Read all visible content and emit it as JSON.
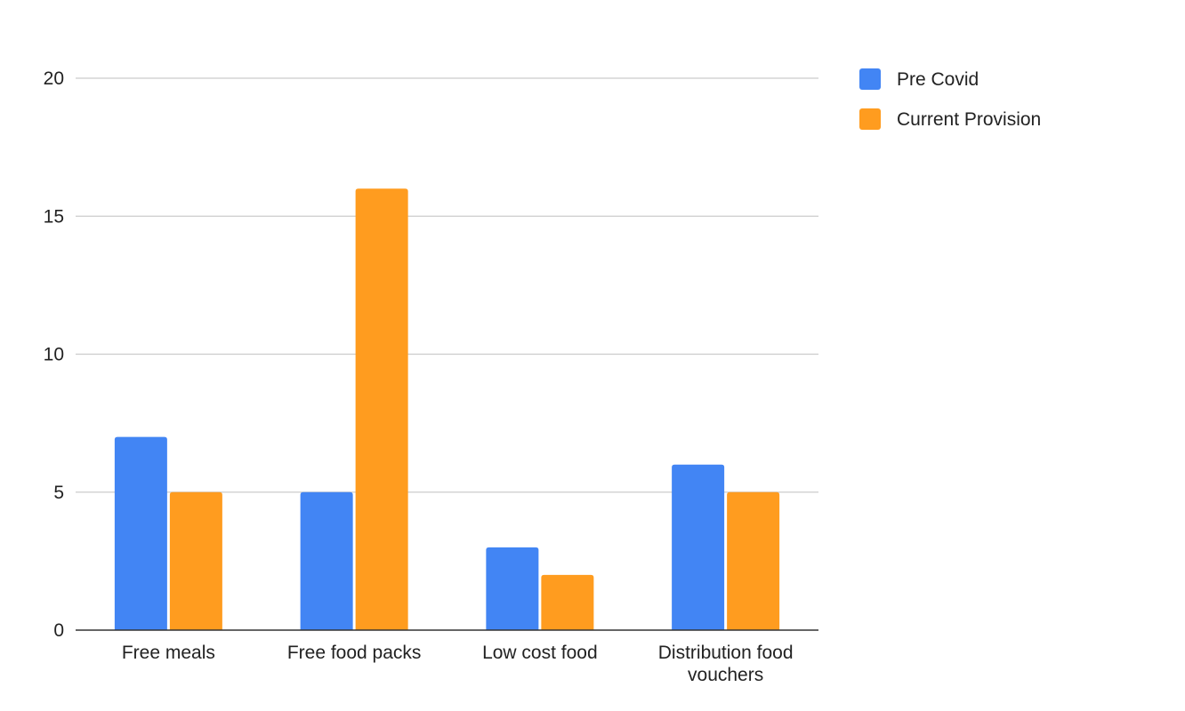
{
  "chart_data": {
    "type": "bar",
    "title": "",
    "xlabel": "",
    "ylabel": "",
    "categories": [
      [
        "Free meals"
      ],
      [
        "Free food packs"
      ],
      [
        "Low cost food"
      ],
      [
        "Distribution food",
        "vouchers"
      ]
    ],
    "series": [
      {
        "name": "Pre Covid",
        "color": "#4285f4",
        "values": [
          7,
          5,
          3,
          6
        ]
      },
      {
        "name": "Current Provision",
        "color": "#ff9c1f",
        "values": [
          5,
          16,
          2,
          5
        ]
      }
    ],
    "ylim": [
      0,
      20
    ],
    "yticks": [
      0,
      5,
      10,
      15,
      20
    ],
    "grid": true,
    "legend_position": "right"
  }
}
